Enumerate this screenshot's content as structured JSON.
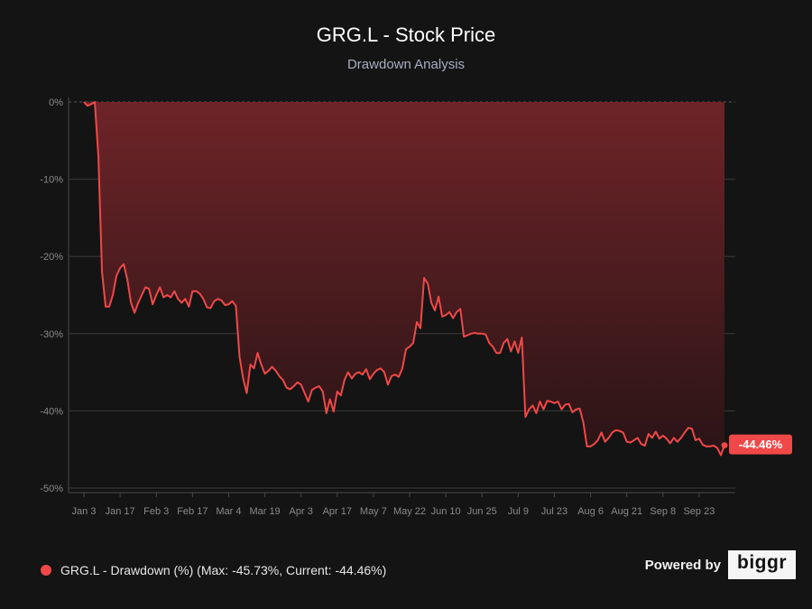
{
  "header": {
    "title": "GRG.L - Stock Price",
    "subtitle": "Drawdown Analysis"
  },
  "legend": {
    "label": "GRG.L - Drawdown (%) (Max: -45.73%, Current: -44.46%)"
  },
  "branding": {
    "powered_by": "Powered by",
    "brand": "biggr"
  },
  "colors": {
    "background": "#141414",
    "line": "#f04848",
    "area_top": "#6e2428",
    "area_bottom": "#2a1416",
    "grid": "#3a3a3a",
    "badge": "#f04848"
  },
  "chart_data": {
    "type": "area",
    "title": "GRG.L - Stock Price",
    "subtitle": "Drawdown Analysis",
    "xlabel": "",
    "ylabel": "",
    "ylim": [
      -50,
      0
    ],
    "y_ticks": [
      0,
      -10,
      -20,
      -30,
      -40,
      -50
    ],
    "y_tick_labels": [
      "0%",
      "-10%",
      "-20%",
      "-30%",
      "-40%",
      "-50%"
    ],
    "x_tick_labels": [
      "Jan 3",
      "Jan 17",
      "Feb 3",
      "Feb 17",
      "Mar 4",
      "Mar 19",
      "Apr 3",
      "Apr 17",
      "May 7",
      "May 22",
      "Jun 10",
      "Jun 25",
      "Jul 9",
      "Jul 23",
      "Aug 6",
      "Aug 21",
      "Sep 8",
      "Sep 23"
    ],
    "x_tick_index": [
      0,
      10,
      20,
      30,
      40,
      50,
      60,
      70,
      80,
      90,
      100,
      110,
      120,
      130,
      140,
      150,
      160,
      170
    ],
    "current_label": "-44.46%",
    "series": [
      {
        "name": "GRG.L - Drawdown (%)",
        "max_drawdown": -45.73,
        "current": -44.46,
        "values": [
          0,
          -0.5,
          -0.3,
          0,
          -7,
          -22,
          -26.5,
          -26.5,
          -25,
          -22.5,
          -21.5,
          -21,
          -23,
          -26,
          -27.3,
          -26,
          -25,
          -24,
          -24.2,
          -26.2,
          -25,
          -24,
          -25.3,
          -25,
          -25.3,
          -24.5,
          -25.5,
          -26,
          -25.5,
          -26.5,
          -24.5,
          -24.5,
          -24.8,
          -25.5,
          -26.6,
          -26.7,
          -25.8,
          -25.5,
          -25.7,
          -26.3,
          -26.2,
          -25.8,
          -26.4,
          -33,
          -35.8,
          -37.7,
          -34,
          -34.5,
          -32.5,
          -34,
          -35.2,
          -34.8,
          -34.3,
          -34.8,
          -35.5,
          -36,
          -37,
          -37.2,
          -36.8,
          -36.3,
          -36.6,
          -37.7,
          -38.8,
          -37.3,
          -37,
          -36.8,
          -37.5,
          -40.3,
          -38.5,
          -40.1,
          -37.5,
          -38,
          -36,
          -35,
          -35.8,
          -35.2,
          -35,
          -35.3,
          -34.6,
          -35.9,
          -35.2,
          -34.7,
          -34.5,
          -35,
          -36.6,
          -35.5,
          -35.3,
          -35.6,
          -34.5,
          -32,
          -31.7,
          -31.2,
          -28.5,
          -29.3,
          -22.8,
          -23.5,
          -26,
          -27,
          -25.2,
          -27.8,
          -27.6,
          -27.2,
          -28,
          -27.2,
          -26.8,
          -30.4,
          -30.2,
          -30,
          -29.9,
          -30,
          -30,
          -30.1,
          -31.2,
          -31.7,
          -32.5,
          -32.5,
          -31.2,
          -30.7,
          -32.3,
          -31,
          -32.5,
          -30.5,
          -40.8,
          -39.8,
          -39.3,
          -40.3,
          -38.8,
          -39.8,
          -38.7,
          -38.8,
          -39,
          -38.8,
          -39.8,
          -39.2,
          -39.1,
          -40.2,
          -39.8,
          -39.7,
          -41.5,
          -44.6,
          -44.6,
          -44.3,
          -43.8,
          -42.8,
          -44,
          -43.5,
          -42.8,
          -42.5,
          -42.6,
          -42.8,
          -44,
          -44.1,
          -43.8,
          -43.5,
          -44.3,
          -44.5,
          -43,
          -43.5,
          -42.7,
          -43.6,
          -43.2,
          -43.6,
          -44.2,
          -43.5,
          -44,
          -43.5,
          -42.8,
          -42.2,
          -42.3,
          -43.8,
          -43.6,
          -44.4,
          -44.6,
          -44.6,
          -44.5,
          -44.8,
          -45.73,
          -44.46
        ]
      }
    ]
  }
}
